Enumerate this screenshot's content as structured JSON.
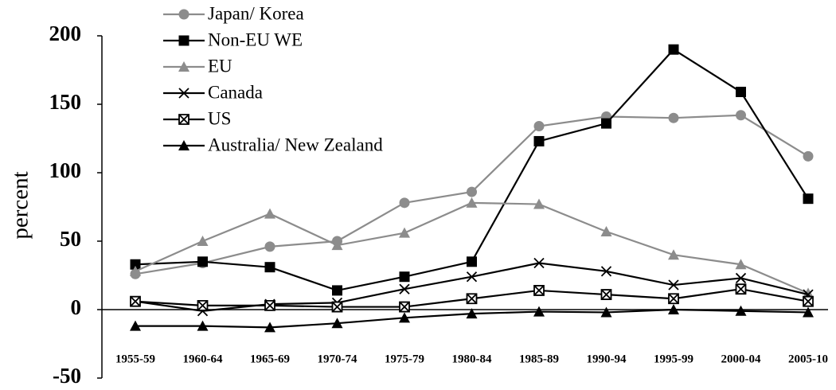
{
  "chart_data": {
    "type": "line",
    "y_label": "percent",
    "categories": [
      "1955-59",
      "1960-64",
      "1965-69",
      "1970-74",
      "1975-79",
      "1980-84",
      "1985-89",
      "1990-94",
      "1995-99",
      "2000-04",
      "2005-10"
    ],
    "series": [
      {
        "name": "Japan/ Korea",
        "color": "#8c8c8c",
        "marker": "circle",
        "values": [
          26,
          34,
          46,
          50,
          78,
          86,
          134,
          141,
          140,
          142,
          112
        ]
      },
      {
        "name": "Non-EU WE",
        "color": "#000000",
        "marker": "square",
        "values": [
          33,
          35,
          31,
          14,
          24,
          35,
          123,
          136,
          190,
          159,
          81
        ]
      },
      {
        "name": "EU",
        "color": "#8c8c8c",
        "marker": "triangle",
        "values": [
          28,
          50,
          70,
          47,
          56,
          78,
          77,
          57,
          40,
          33,
          12
        ]
      },
      {
        "name": "Canada",
        "color": "#000000",
        "marker": "x",
        "values": [
          6,
          -1,
          4,
          5,
          15,
          24,
          34,
          28,
          18,
          23,
          11
        ]
      },
      {
        "name": "US",
        "color": "#000000",
        "marker": "boxed-x",
        "values": [
          6,
          3,
          3,
          2,
          2,
          8,
          14,
          11,
          8,
          15,
          6
        ]
      },
      {
        "name": "Australia/ New Zealand",
        "color": "#000000",
        "marker": "triangle",
        "values": [
          -12,
          -12,
          -13,
          -10,
          -6,
          -3,
          -1.5,
          -2,
          0,
          -1,
          -2
        ]
      }
    ],
    "ylim": [
      -50,
      200
    ],
    "yticks": [
      -50,
      0,
      50,
      100,
      150,
      200
    ],
    "legend": "upper left",
    "grid": false
  }
}
